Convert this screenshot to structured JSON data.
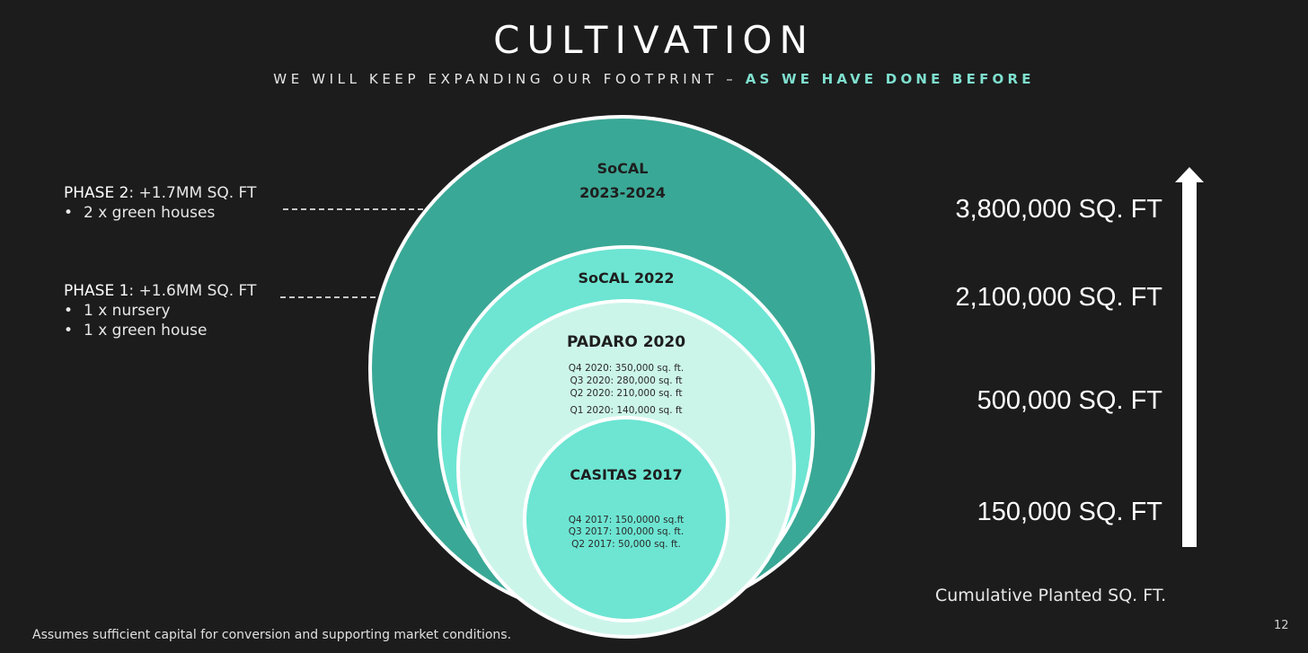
{
  "title": "CULTIVATION",
  "subtitle": {
    "main": "WE WILL KEEP EXPANDING OUR FOOTPRINT – ",
    "highlight": "AS WE HAVE DONE BEFORE"
  },
  "phases": [
    {
      "label": "PHASE 2",
      "detail": ": +1.7MM SQ. FT",
      "items": [
        "2 x green houses"
      ]
    },
    {
      "label": "PHASE 1",
      "detail": ": +1.6MM SQ. FT",
      "items": [
        "1 x nursery",
        "1 x green house"
      ]
    }
  ],
  "circles": {
    "outer": {
      "title_line1": "SoCAL",
      "title_line2": "2023-2024"
    },
    "second": {
      "title": "SoCAL 2022"
    },
    "third": {
      "title": "PADARO 2020",
      "lines": [
        "Q4 2020: 350,000 sq. ft.",
        "Q3 2020: 280,000 sq. ft",
        "Q2 2020: 210,000 sq. ft",
        "Q1 2020: 140,000 sq. ft"
      ]
    },
    "inner": {
      "title": "CASITAS 2017",
      "lines": [
        "Q4 2017: 150,0000 sq.ft",
        "Q3 2017: 100,000 sq. ft.",
        "Q2 2017: 50,000 sq. ft."
      ]
    }
  },
  "sqft_levels": [
    "3,800,000 SQ. FT",
    "2,100,000 SQ. FT",
    "500,000 SQ. FT",
    "150,000 SQ. FT"
  ],
  "cumulative_label": "Cumulative Planted SQ. FT.",
  "footnote": "Assumes sufficient capital for conversion and supporting market conditions.",
  "page_number": "12",
  "colors": {
    "background": "#1c1c1c",
    "outer_circle": "#3aa896",
    "second_circle": "#6de5d2",
    "third_circle": "#ccf5ea",
    "inner_circle": "#6de5d2",
    "accent": "#7fe0cf"
  }
}
